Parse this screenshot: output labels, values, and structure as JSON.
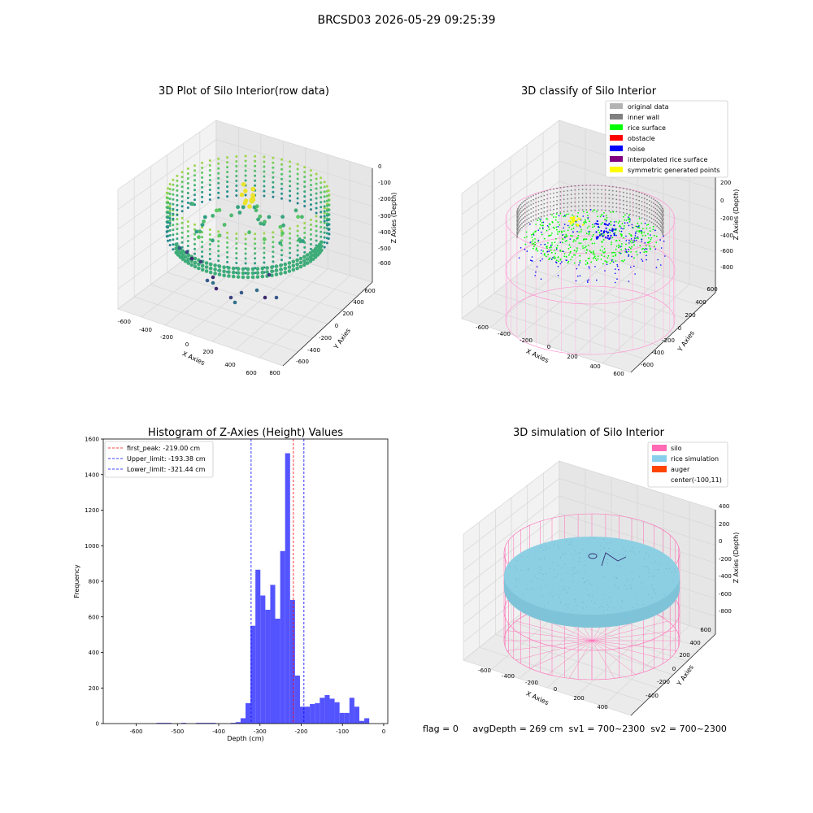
{
  "figure": {
    "suptitle": "BRCSD03 2026-05-29 09:25:39",
    "status_line": "flag = 0     avgDepth = 269 cm  sv1 = 700~2300  sv2 = 700~2300"
  },
  "chart_data": [
    {
      "type": "scatter",
      "projection": "3d",
      "title": "3D Plot of Silo Interior(row data)",
      "xlabel": "X Axies",
      "ylabel": "Y Axies",
      "zlabel": "Z Axies (Depth)",
      "x_ticks": [
        -600,
        -400,
        -200,
        0,
        200,
        400,
        600,
        800
      ],
      "y_ticks": [
        -600,
        -400,
        -200,
        0,
        200,
        400,
        600
      ],
      "z_ticks": [
        0,
        -100,
        -200,
        -300,
        -400,
        -500,
        -600
      ],
      "colormap": "viridis",
      "series": [
        {
          "description_points": [
            {
              "x": -600,
              "y": 0,
              "z": -230
            },
            {
              "x": -400,
              "y": 400,
              "z": -220
            },
            {
              "x": 0,
              "y": 600,
              "z": -210
            },
            {
              "x": 400,
              "y": 400,
              "z": -230
            },
            {
              "x": 600,
              "y": 0,
              "z": -240
            },
            {
              "x": 400,
              "y": -400,
              "z": -260
            },
            {
              "x": 0,
              "y": -600,
              "z": -250
            },
            {
              "x": -400,
              "y": -400,
              "z": -240
            },
            {
              "x": -100,
              "y": 100,
              "z": -120
            },
            {
              "x": 0,
              "y": 0,
              "z": -280
            },
            {
              "x": 200,
              "y": -100,
              "z": -290
            },
            {
              "x": -300,
              "y": -300,
              "z": -520
            },
            {
              "x": -200,
              "y": -200,
              "z": -560
            },
            {
              "x": 100,
              "y": -300,
              "z": -590
            }
          ]
        }
      ]
    },
    {
      "type": "scatter",
      "projection": "3d",
      "title": "3D classify of Silo Interior",
      "xlabel": "X Axies",
      "ylabel": "Y Axies",
      "zlabel": "Z Axies (Depth)",
      "x_ticks": [
        -600,
        -400,
        -200,
        0,
        200,
        400,
        600
      ],
      "y_ticks": [
        -600,
        -400,
        -200,
        0,
        200,
        400,
        600
      ],
      "z_ticks": [
        200,
        0,
        -200,
        -400,
        -600,
        -800
      ],
      "legend": {
        "placement": "upper-right",
        "entries": [
          {
            "label": "original data",
            "color": "#b3b3b3"
          },
          {
            "label": "inner wall",
            "color": "#808080"
          },
          {
            "label": "rice surface",
            "color": "#00ff00"
          },
          {
            "label": "obstacle",
            "color": "#ff0000"
          },
          {
            "label": "noise",
            "color": "#0000ff"
          },
          {
            "label": "interpolated rice surface",
            "color": "#800080"
          },
          {
            "label": "symmetric generated points",
            "color": "#ffff00"
          }
        ]
      }
    },
    {
      "type": "bar",
      "subtype": "histogram",
      "title": "Histogram of Z-Axies (Height) Values",
      "xlabel": "Depth (cm)",
      "ylabel": "Frequency",
      "xlim": [
        -680,
        10
      ],
      "ylim": [
        0,
        1600
      ],
      "x_ticks": [
        -600,
        -500,
        -400,
        -300,
        -200,
        -100,
        0
      ],
      "y_ticks": [
        0,
        200,
        400,
        600,
        800,
        1000,
        1200,
        1400,
        1600
      ],
      "bar_color": "#4b4bff",
      "bin_width": 12,
      "bins": [
        {
          "x": -545,
          "value": 4
        },
        {
          "x": -533,
          "value": 4
        },
        {
          "x": -521,
          "value": 4
        },
        {
          "x": -485,
          "value": 4
        },
        {
          "x": -449,
          "value": 4
        },
        {
          "x": -437,
          "value": 4
        },
        {
          "x": -425,
          "value": 4
        },
        {
          "x": -413,
          "value": 4
        },
        {
          "x": -365,
          "value": 4
        },
        {
          "x": -353,
          "value": 8
        },
        {
          "x": -341,
          "value": 30
        },
        {
          "x": -329,
          "value": 115
        },
        {
          "x": -317,
          "value": 550
        },
        {
          "x": -305,
          "value": 865
        },
        {
          "x": -293,
          "value": 720
        },
        {
          "x": -281,
          "value": 640
        },
        {
          "x": -269,
          "value": 780
        },
        {
          "x": -257,
          "value": 590
        },
        {
          "x": -245,
          "value": 970
        },
        {
          "x": -233,
          "value": 1520
        },
        {
          "x": -221,
          "value": 695
        },
        {
          "x": -209,
          "value": 270
        },
        {
          "x": -197,
          "value": 95
        },
        {
          "x": -185,
          "value": 95
        },
        {
          "x": -173,
          "value": 110
        },
        {
          "x": -161,
          "value": 115
        },
        {
          "x": -149,
          "value": 145
        },
        {
          "x": -137,
          "value": 160
        },
        {
          "x": -125,
          "value": 140
        },
        {
          "x": -113,
          "value": 120
        },
        {
          "x": -101,
          "value": 60
        },
        {
          "x": -89,
          "value": 60
        },
        {
          "x": -77,
          "value": 145
        },
        {
          "x": -65,
          "value": 95
        },
        {
          "x": -53,
          "value": 15
        },
        {
          "x": -41,
          "value": 30
        }
      ],
      "vlines": [
        {
          "label": "first_peak: -219.00 cm",
          "x": -219.0,
          "color": "#ff0000"
        },
        {
          "label": "Upper_limit: -193.38 cm",
          "x": -193.38,
          "color": "#0000ff"
        },
        {
          "label": "Lower_limit: -321.44 cm",
          "x": -321.44,
          "color": "#0000ff"
        }
      ],
      "legend": {
        "placement": "upper-left"
      }
    },
    {
      "type": "scatter",
      "projection": "3d",
      "title": "3D simulation of Silo Interior",
      "xlabel": "X Axies",
      "ylabel": "Y Axies",
      "zlabel": "Z Axies (Depth)",
      "x_ticks": [
        -600,
        -400,
        -200,
        0,
        200,
        400
      ],
      "y_ticks": [
        -400,
        -200,
        0,
        200,
        400,
        600
      ],
      "z_ticks": [
        400,
        200,
        0,
        -200,
        -400,
        -600,
        -800
      ],
      "legend": {
        "placement": "upper-right",
        "entries": [
          {
            "label": "silo",
            "color": "#ff69b4"
          },
          {
            "label": "rice simulation",
            "color": "#87ceeb"
          },
          {
            "label": "auger",
            "color": "#ff4500"
          },
          {
            "label": "center(-100,11)",
            "color": ""
          }
        ]
      }
    }
  ]
}
